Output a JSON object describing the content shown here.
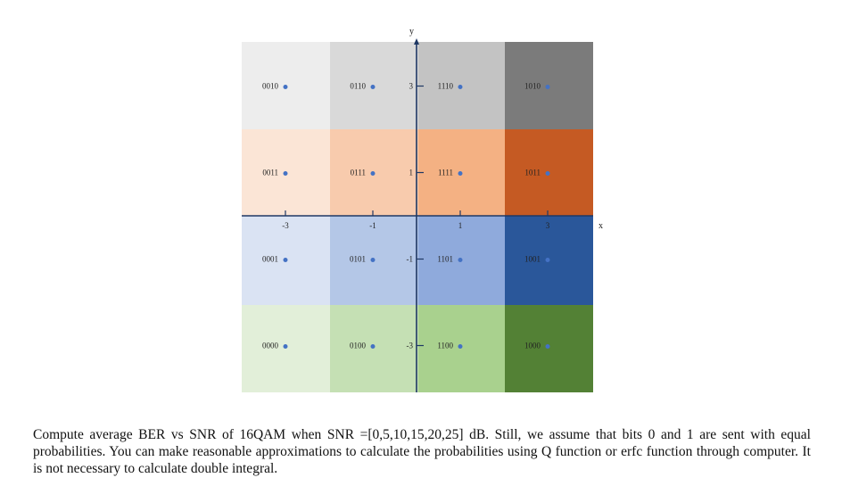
{
  "diagram": {
    "axis_x_label": "x",
    "axis_y_label": "y",
    "x_ticks": [
      {
        "value": -3,
        "label": "-3"
      },
      {
        "value": -1,
        "label": "-1"
      },
      {
        "value": 1,
        "label": "1"
      },
      {
        "value": 3,
        "label": "3"
      }
    ],
    "y_ticks": [
      {
        "value": 3,
        "label": "3"
      },
      {
        "value": 1,
        "label": "1"
      },
      {
        "value": -1,
        "label": "-1"
      },
      {
        "value": -3,
        "label": "-3"
      }
    ],
    "colors": {
      "row_y3": [
        "#ededed",
        "#d9d9d9",
        "#c3c3c3",
        "#7b7b7b"
      ],
      "row_y1": [
        "#fbe5d6",
        "#f8cbad",
        "#f4b183",
        "#c55a23"
      ],
      "row_ym1": [
        "#dae3f3",
        "#b4c7e7",
        "#8faadc",
        "#2a579a"
      ],
      "row_ym3": [
        "#e2efd9",
        "#c5e0b4",
        "#a9d18e",
        "#538135"
      ],
      "point": "#4472c4",
      "axis": "#1f3864"
    },
    "symbols": [
      {
        "label": "0010",
        "x": -3,
        "y": 3,
        "row": "row_y3",
        "col": 0
      },
      {
        "label": "0110",
        "x": -1,
        "y": 3,
        "row": "row_y3",
        "col": 1
      },
      {
        "label": "1110",
        "x": 1,
        "y": 3,
        "row": "row_y3",
        "col": 2
      },
      {
        "label": "1010",
        "x": 3,
        "y": 3,
        "row": "row_y3",
        "col": 3
      },
      {
        "label": "0011",
        "x": -3,
        "y": 1,
        "row": "row_y1",
        "col": 0
      },
      {
        "label": "0111",
        "x": -1,
        "y": 1,
        "row": "row_y1",
        "col": 1
      },
      {
        "label": "1111",
        "x": 1,
        "y": 1,
        "row": "row_y1",
        "col": 2
      },
      {
        "label": "1011",
        "x": 3,
        "y": 1,
        "row": "row_y1",
        "col": 3
      },
      {
        "label": "0001",
        "x": -3,
        "y": -1,
        "row": "row_ym1",
        "col": 0
      },
      {
        "label": "0101",
        "x": -1,
        "y": -1,
        "row": "row_ym1",
        "col": 1
      },
      {
        "label": "1101",
        "x": 1,
        "y": -1,
        "row": "row_ym1",
        "col": 2
      },
      {
        "label": "1001",
        "x": 3,
        "y": -1,
        "row": "row_ym1",
        "col": 3
      },
      {
        "label": "0000",
        "x": -3,
        "y": -3,
        "row": "row_ym3",
        "col": 0
      },
      {
        "label": "0100",
        "x": -1,
        "y": -3,
        "row": "row_ym3",
        "col": 1
      },
      {
        "label": "1100",
        "x": 1,
        "y": -3,
        "row": "row_ym3",
        "col": 2
      },
      {
        "label": "1000",
        "x": 3,
        "y": -3,
        "row": "row_ym3",
        "col": 3
      }
    ]
  },
  "problem_text": "Compute average BER vs SNR of 16QAM when SNR =[0,5,10,15,20,25] dB. Still, we assume that bits 0 and 1 are sent with equal probabilities. You can make reasonable approximations to calculate the probabilities using Q function or erfc function through computer. It is not necessary to calculate double integral."
}
